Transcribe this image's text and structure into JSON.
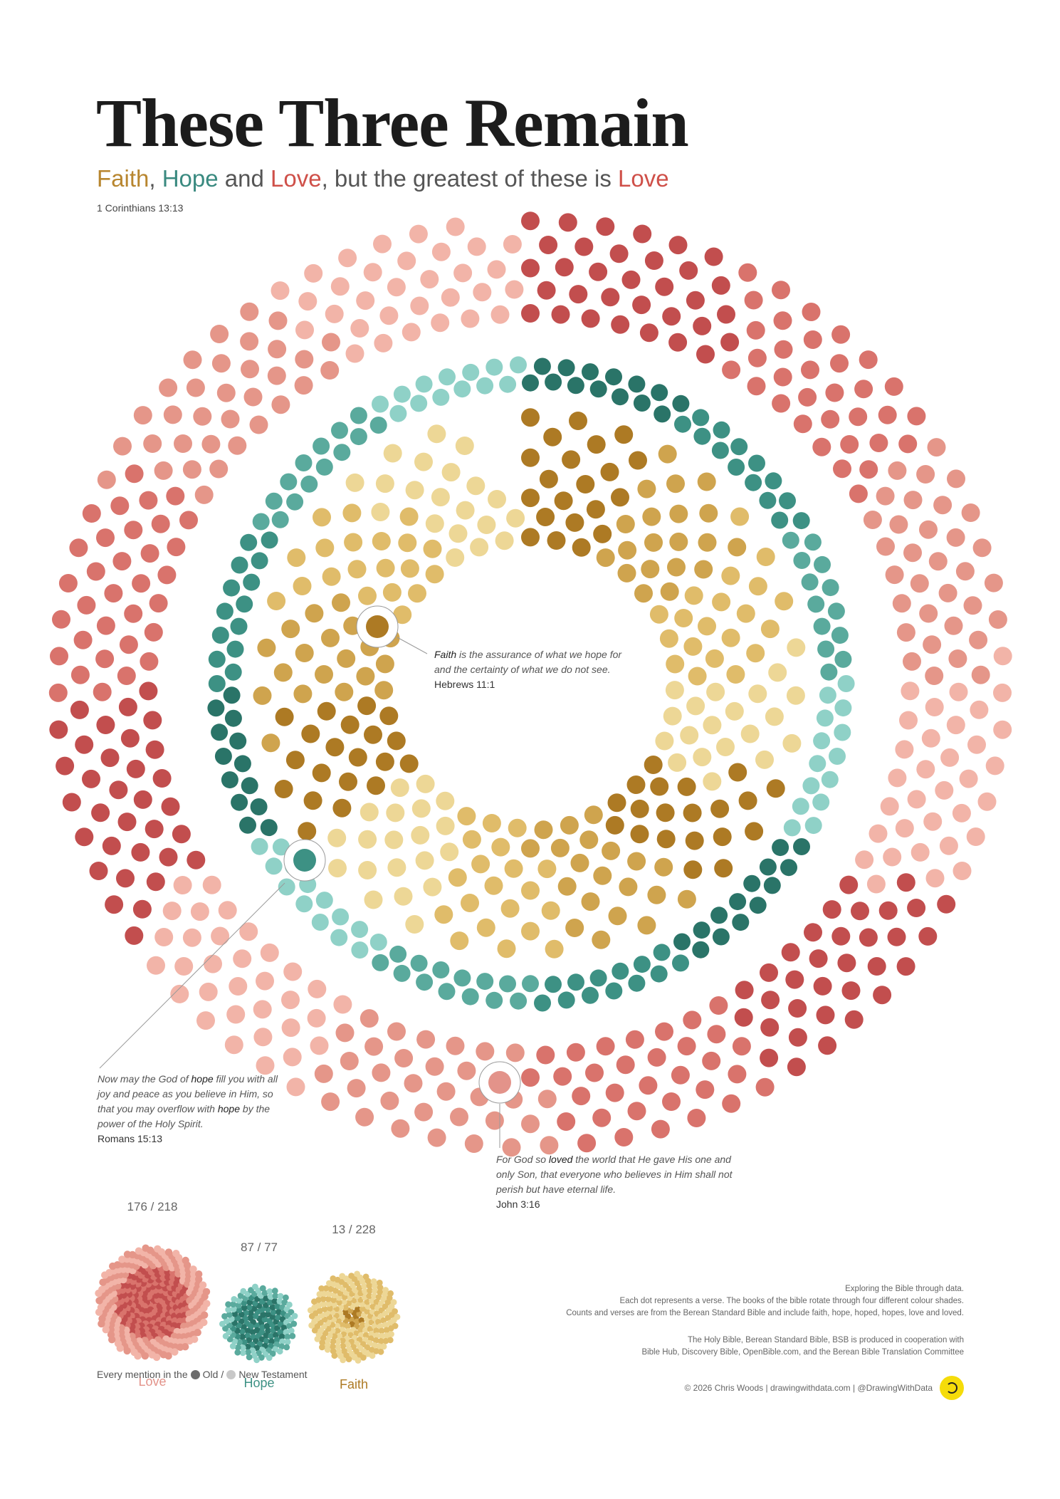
{
  "header": {
    "title": "These Three Remain",
    "subtitle": [
      {
        "text": "Faith",
        "color": "#b8862f"
      },
      {
        "text": ", ",
        "color": "#555555"
      },
      {
        "text": "Hope",
        "color": "#3a8a80"
      },
      {
        "text": " and ",
        "color": "#555555"
      },
      {
        "text": "Love",
        "color": "#cf5049"
      },
      {
        "text": ", but the greatest of these is ",
        "color": "#555555"
      },
      {
        "text": "Love",
        "color": "#cf5049"
      }
    ],
    "reference": "1 Corinthians 13:13"
  },
  "quotes": {
    "faith": {
      "text": [
        {
          "t": "Faith",
          "em": true
        },
        {
          "t": " is the assurance of what we hope for and the certainty of what we do not see.",
          "em": false
        }
      ],
      "ref": "Hebrews 11:1"
    },
    "hope": {
      "text": [
        {
          "t": "Now may the God of ",
          "em": false
        },
        {
          "t": "hope",
          "em": true
        },
        {
          "t": " fill you with all joy and peace as you believe in Him, so that you may overflow with ",
          "em": false
        },
        {
          "t": "hope",
          "em": true
        },
        {
          "t": " by the power of the Holy Spirit.",
          "em": false
        }
      ],
      "ref": "Romans 15:13"
    },
    "love": {
      "text": [
        {
          "t": "For God so ",
          "em": false
        },
        {
          "t": "loved",
          "em": true
        },
        {
          "t": " the world that He gave His one and only Son, that everyone who believes in Him shall not perish but have eternal life.",
          "em": false
        }
      ],
      "ref": "John 3:16"
    }
  },
  "notes": {
    "lines1": [
      "Exploring the Bible through data.",
      "Each dot represents a verse.  The books of the bible rotate through four different colour shades.",
      "Counts and verses are from the Berean Standard Bible and include faith, hope, hoped, hopes, love and loved."
    ],
    "lines2": [
      "The Holy Bible, Berean Standard Bible, BSB is produced in cooperation with",
      "Bible Hub, Discovery Bible, OpenBible.com, and the Berean Bible Translation Committee"
    ]
  },
  "footer": {
    "credit": "© 2026 Chris Woods  |  drawingwithdata.com  |  @DrawingWithData"
  },
  "legend": {
    "prefix": "Every mention in the",
    "old": "Old",
    "sep": "/",
    "new": "New Testament",
    "old_color": "#6b6b6b",
    "new_color": "#c8c8c8"
  },
  "chart_data": {
    "type": "dot-rings",
    "series": [
      {
        "name": "Love",
        "old": 176,
        "new": 218,
        "label": "176 / 218",
        "shades": [
          "#c24e4e",
          "#d9736c",
          "#e59689",
          "#f2b4a8"
        ],
        "highlight": "#e3938a"
      },
      {
        "name": "Hope",
        "old": 87,
        "new": 77,
        "label": "87 / 77",
        "shades": [
          "#2a7468",
          "#3d9184",
          "#5aaa9d",
          "#8fd1c7"
        ],
        "highlight": "#3d9184"
      },
      {
        "name": "Faith",
        "old": 13,
        "new": 228,
        "label": "13 / 228",
        "shades": [
          "#ad7a24",
          "#cfa44e",
          "#e0bc6a",
          "#edd796"
        ],
        "highlight": "#ad7a24"
      }
    ]
  }
}
